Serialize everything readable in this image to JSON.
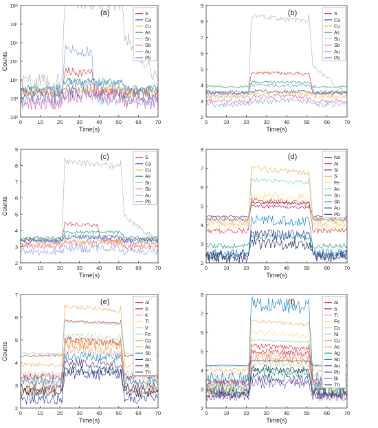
{
  "chart_data": [
    {
      "type": "line",
      "label": "(a)",
      "xlabel": "Time(s)",
      "ylabel": "Counts",
      "xlim": [
        0,
        70
      ],
      "xticks": [
        "0",
        "10",
        "20",
        "30",
        "40",
        "50",
        "60",
        "70"
      ],
      "yscale": "log",
      "ylim": [
        2,
        8
      ],
      "yticks": [
        {
          "v": 2,
          "label": "10²"
        },
        {
          "v": 3,
          "label": "10³"
        },
        {
          "v": 4,
          "label": "10⁴"
        },
        {
          "v": 5,
          "label": "10⁵"
        },
        {
          "v": 6,
          "label": "10⁶"
        },
        {
          "v": 7,
          "label": "10⁷"
        },
        {
          "v": 8,
          "label": "10⁸"
        }
      ],
      "grid": false,
      "legend_position": "top-right",
      "series": [
        {
          "name": "S",
          "color": "#e8363a",
          "base": 3.35,
          "peak": 4.45,
          "noise": 0.25,
          "start": 21,
          "end": 37
        },
        {
          "name": "Ca",
          "color": "#2563c9",
          "base": 3.05,
          "peak": 3.3,
          "noise": 0.35,
          "start": 21,
          "end": 52
        },
        {
          "name": "Cu",
          "color": "#f2c230",
          "base": 3.25,
          "peak": 3.5,
          "noise": 0.25,
          "start": 21,
          "end": 52
        },
        {
          "name": "As",
          "color": "#1aa372",
          "base": 3.55,
          "peak": 3.9,
          "noise": 0.2,
          "start": 21,
          "end": 52
        },
        {
          "name": "Sn",
          "color": "#b7b7b7",
          "base": 3.9,
          "peak": 8.3,
          "noise": 0.45,
          "start": 21,
          "end": 52,
          "tail": 6.5
        },
        {
          "name": "Sb",
          "color": "#e86aa8",
          "base": 2.8,
          "peak": 3.2,
          "noise": 0.45,
          "start": 21,
          "end": 52
        },
        {
          "name": "Au",
          "color": "#8ea4e0",
          "base": 2.9,
          "peak": 5.7,
          "noise": 0.3,
          "start": 21,
          "end": 37
        },
        {
          "name": "Pb",
          "color": "#6d8ed4",
          "base": 3.4,
          "peak": 3.8,
          "noise": 0.3,
          "start": 21,
          "end": 52
        }
      ]
    },
    {
      "type": "line",
      "label": "(b)",
      "xlabel": "Time(s)",
      "ylabel": "",
      "xlim": [
        0,
        70
      ],
      "xticks": [
        "0",
        "10",
        "20",
        "30",
        "40",
        "50",
        "60",
        "70"
      ],
      "ylim": [
        2,
        9
      ],
      "yticks": [
        {
          "v": 2,
          "label": "2"
        },
        {
          "v": 3,
          "label": "3"
        },
        {
          "v": 4,
          "label": "4"
        },
        {
          "v": 5,
          "label": "5"
        },
        {
          "v": 6,
          "label": "6"
        },
        {
          "v": 7,
          "label": "7"
        },
        {
          "v": 8,
          "label": "8"
        },
        {
          "v": 9,
          "label": "9"
        }
      ],
      "grid": false,
      "legend_position": "top-right",
      "series": [
        {
          "name": "S",
          "color": "#e8363a",
          "base": 3.5,
          "peak": 4.8,
          "noise": 0.1,
          "start": 21,
          "end": 52
        },
        {
          "name": "Ca",
          "color": "#2563c9",
          "base": 3.5,
          "peak": 3.6,
          "noise": 0.12,
          "start": 21,
          "end": 52
        },
        {
          "name": "Cu",
          "color": "#f2c230",
          "base": 3.3,
          "peak": 3.5,
          "noise": 0.15,
          "start": 21,
          "end": 52
        },
        {
          "name": "As",
          "color": "#1aa372",
          "base": 3.9,
          "peak": 4.2,
          "noise": 0.08,
          "start": 21,
          "end": 52
        },
        {
          "name": "Sn",
          "color": "#b7b7b7",
          "base": 3.3,
          "peak": 8.4,
          "noise": 0.15,
          "start": 21,
          "end": 52,
          "tail": 5.2
        },
        {
          "name": "Sb",
          "color": "#e86aa8",
          "base": 3.0,
          "peak": 3.3,
          "noise": 0.15,
          "start": 21,
          "end": 52
        },
        {
          "name": "Au",
          "color": "#8ea4e0",
          "base": 2.8,
          "peak": 3.0,
          "noise": 0.2,
          "start": 21,
          "end": 52
        },
        {
          "name": "Pb",
          "color": "#6d8ed4",
          "base": 3.6,
          "peak": 4.0,
          "noise": 0.1,
          "start": 21,
          "end": 52
        }
      ]
    },
    {
      "type": "line",
      "label": "(c)",
      "xlabel": "Time(s)",
      "ylabel": "Counts",
      "xlim": [
        0,
        70
      ],
      "xticks": [
        "0",
        "10",
        "20",
        "30",
        "40",
        "50",
        "60",
        "70"
      ],
      "ylim": [
        2,
        9
      ],
      "yticks": [
        {
          "v": 2,
          "label": "2"
        },
        {
          "v": 3,
          "label": "3"
        },
        {
          "v": 4,
          "label": "4"
        },
        {
          "v": 5,
          "label": "5"
        },
        {
          "v": 6,
          "label": "6"
        },
        {
          "v": 7,
          "label": "7"
        },
        {
          "v": 8,
          "label": "8"
        },
        {
          "v": 9,
          "label": "9"
        }
      ],
      "grid": false,
      "legend_position": "top-right",
      "series": [
        {
          "name": "S",
          "color": "#e8363a",
          "base": 3.4,
          "peak": 4.4,
          "noise": 0.12,
          "start": 21,
          "end": 40
        },
        {
          "name": "Ca",
          "color": "#2563c9",
          "base": 3.4,
          "peak": 3.6,
          "noise": 0.15,
          "start": 21,
          "end": 52
        },
        {
          "name": "Cu",
          "color": "#f2c230",
          "base": 3.1,
          "peak": 3.3,
          "noise": 0.15,
          "start": 21,
          "end": 52
        },
        {
          "name": "As",
          "color": "#1aa372",
          "base": 3.55,
          "peak": 3.9,
          "noise": 0.1,
          "start": 21,
          "end": 52
        },
        {
          "name": "Sn",
          "color": "#b7b7b7",
          "base": 3.3,
          "peak": 8.3,
          "noise": 0.2,
          "start": 21,
          "end": 52,
          "tail": 4.8
        },
        {
          "name": "Sb",
          "color": "#e86aa8",
          "base": 3.0,
          "peak": 3.2,
          "noise": 0.2,
          "start": 21,
          "end": 52
        },
        {
          "name": "Au",
          "color": "#8ea4e0",
          "base": 2.7,
          "peak": 2.9,
          "noise": 0.25,
          "start": 21,
          "end": 52
        },
        {
          "name": "Pb",
          "color": "#6d8ed4",
          "base": 3.3,
          "peak": 3.6,
          "noise": 0.15,
          "start": 21,
          "end": 52
        }
      ]
    },
    {
      "type": "line",
      "label": "(d)",
      "xlabel": "Time(s)",
      "ylabel": "",
      "xlim": [
        0,
        70
      ],
      "xticks": [
        "0",
        "10",
        "20",
        "30",
        "40",
        "50",
        "60",
        "70"
      ],
      "ylim": [
        2,
        8
      ],
      "yticks": [
        {
          "v": 2,
          "label": "2"
        },
        {
          "v": 3,
          "label": "3"
        },
        {
          "v": 4,
          "label": "4"
        },
        {
          "v": 5,
          "label": "5"
        },
        {
          "v": 6,
          "label": "6"
        },
        {
          "v": 7,
          "label": "7"
        },
        {
          "v": 8,
          "label": "8"
        }
      ],
      "grid": false,
      "legend_position": "top-right",
      "series": [
        {
          "name": "Na",
          "color": "#7a1a2e",
          "base": 4.45,
          "peak": 5.2,
          "noise": 0.05,
          "start": 21,
          "end": 52
        },
        {
          "name": "Al",
          "color": "#e8363a",
          "base": 3.7,
          "peak": 5.3,
          "noise": 0.15,
          "start": 21,
          "end": 52
        },
        {
          "name": "Si",
          "color": "#c2185b",
          "base": 4.3,
          "peak": 5.0,
          "noise": 0.1,
          "start": 21,
          "end": 52
        },
        {
          "name": "S",
          "color": "#f2b56a",
          "base": 4.1,
          "peak": 7.0,
          "noise": 0.15,
          "start": 21,
          "end": 52
        },
        {
          "name": "Fe",
          "color": "#f7e08a",
          "base": 4.0,
          "peak": 5.6,
          "noise": 0.2,
          "start": 21,
          "end": 52
        },
        {
          "name": "As",
          "color": "#7fd6c4",
          "base": 4.3,
          "peak": 6.4,
          "noise": 0.1,
          "start": 21,
          "end": 52
        },
        {
          "name": "Sn",
          "color": "#1aa372",
          "base": 2.9,
          "peak": 3.4,
          "noise": 0.15,
          "start": 21,
          "end": 52
        },
        {
          "name": "Sb",
          "color": "#1e88c9",
          "base": 2.5,
          "peak": 4.3,
          "noise": 0.25,
          "start": 21,
          "end": 52
        },
        {
          "name": "Au",
          "color": "#2a3fa0",
          "base": 2.4,
          "peak": 3.5,
          "noise": 0.3,
          "start": 21,
          "end": 52
        },
        {
          "name": "Pb",
          "color": "#1e2a5a",
          "base": 2.3,
          "peak": 3.0,
          "noise": 0.3,
          "start": 21,
          "end": 52
        }
      ]
    },
    {
      "type": "line",
      "label": "(e)",
      "xlabel": "Time(s)",
      "ylabel": "Counts",
      "xlim": [
        0,
        70
      ],
      "xticks": [
        "0",
        "10",
        "20",
        "30",
        "40",
        "50",
        "60",
        "70"
      ],
      "ylim": [
        2,
        7
      ],
      "yticks": [
        {
          "v": 2,
          "label": "2"
        },
        {
          "v": 3,
          "label": "3"
        },
        {
          "v": 4,
          "label": "4"
        },
        {
          "v": 5,
          "label": "5"
        },
        {
          "v": 6,
          "label": "6"
        },
        {
          "v": 7,
          "label": "7"
        }
      ],
      "grid": false,
      "legend_position": "top-right",
      "series": [
        {
          "name": "Al",
          "color": "#e8363a",
          "base": 4.3,
          "peak": 5.85,
          "noise": 0.05,
          "start": 21,
          "end": 52
        },
        {
          "name": "S",
          "color": "#c2185b",
          "base": 3.4,
          "peak": 5.0,
          "noise": 0.15,
          "start": 21,
          "end": 52
        },
        {
          "name": "K",
          "color": "#f2b56a",
          "base": 3.9,
          "peak": 6.5,
          "noise": 0.1,
          "start": 21,
          "end": 52
        },
        {
          "name": "Ti",
          "color": "#f7e08a",
          "base": 3.0,
          "peak": 4.8,
          "noise": 0.25,
          "start": 21,
          "end": 52
        },
        {
          "name": "V",
          "color": "#b5d7a0",
          "base": 3.5,
          "peak": 5.2,
          "noise": 0.15,
          "start": 21,
          "end": 52
        },
        {
          "name": "Fe",
          "color": "#7fd6c4",
          "base": 4.4,
          "peak": 5.8,
          "noise": 0.05,
          "start": 21,
          "end": 52
        },
        {
          "name": "Co",
          "color": "#f08a3a",
          "base": 2.8,
          "peak": 4.9,
          "noise": 0.25,
          "start": 21,
          "end": 52
        },
        {
          "name": "As",
          "color": "#f7a8a0",
          "base": 3.3,
          "peak": 4.6,
          "noise": 0.2,
          "start": 21,
          "end": 52
        },
        {
          "name": "Sb",
          "color": "#1e88c9",
          "base": 3.2,
          "peak": 4.3,
          "noise": 0.2,
          "start": 21,
          "end": 52
        },
        {
          "name": "Au",
          "color": "#2a3fa0",
          "base": 2.4,
          "peak": 3.5,
          "noise": 0.25,
          "start": 21,
          "end": 52
        },
        {
          "name": "Bi",
          "color": "#5a3f8e",
          "base": 2.9,
          "peak": 4.0,
          "noise": 0.2,
          "start": 21,
          "end": 52
        },
        {
          "name": "Th",
          "color": "#1e2a5a",
          "base": 2.7,
          "peak": 3.7,
          "noise": 0.2,
          "start": 21,
          "end": 52
        }
      ]
    },
    {
      "type": "line",
      "label": "(f)",
      "xlabel": "Time(s)",
      "ylabel": "",
      "xlim": [
        0,
        70
      ],
      "xticks": [
        "0",
        "10",
        "20",
        "30",
        "40",
        "50",
        "60",
        "70"
      ],
      "ylim": [
        2,
        8
      ],
      "yticks": [
        {
          "v": 2,
          "label": "2"
        },
        {
          "v": 3,
          "label": "3"
        },
        {
          "v": 4,
          "label": "4"
        },
        {
          "v": 5,
          "label": "5"
        },
        {
          "v": 6,
          "label": "6"
        },
        {
          "v": 7,
          "label": "7"
        },
        {
          "v": 8,
          "label": "8"
        }
      ],
      "grid": false,
      "legend_position": "top-right",
      "series": [
        {
          "name": "Al",
          "color": "#e8363a",
          "base": 3.4,
          "peak": 5.3,
          "noise": 0.15,
          "start": 21,
          "end": 52
        },
        {
          "name": "S",
          "color": "#c2185b",
          "base": 3.3,
          "peak": 5.0,
          "noise": 0.15,
          "start": 21,
          "end": 52
        },
        {
          "name": "Ti",
          "color": "#f2b56a",
          "base": 4.0,
          "peak": 6.6,
          "noise": 0.1,
          "start": 21,
          "end": 52
        },
        {
          "name": "Fe",
          "color": "#f7e08a",
          "base": 3.8,
          "peak": 6.0,
          "noise": 0.15,
          "start": 21,
          "end": 52
        },
        {
          "name": "Co",
          "color": "#b5d7a0",
          "base": 3.1,
          "peak": 4.4,
          "noise": 0.2,
          "start": 21,
          "end": 52
        },
        {
          "name": "Ni",
          "color": "#7fd6c4",
          "base": 4.2,
          "peak": 5.6,
          "noise": 0.05,
          "start": 21,
          "end": 52
        },
        {
          "name": "Cu",
          "color": "#f08a3a",
          "base": 2.9,
          "peak": 4.7,
          "noise": 0.25,
          "start": 21,
          "end": 52
        },
        {
          "name": "As",
          "color": "#f7a8a0",
          "base": 3.2,
          "peak": 4.9,
          "noise": 0.2,
          "start": 21,
          "end": 52
        },
        {
          "name": "Ag",
          "color": "#1aa372",
          "base": 3.0,
          "peak": 3.9,
          "noise": 0.25,
          "start": 21,
          "end": 52
        },
        {
          "name": "Sb",
          "color": "#1e88c9",
          "base": 3.5,
          "peak": 7.6,
          "noise": 0.4,
          "start": 21,
          "end": 52
        },
        {
          "name": "Au",
          "color": "#2a3fa0",
          "base": 2.8,
          "peak": 3.6,
          "noise": 0.3,
          "start": 21,
          "end": 52
        },
        {
          "name": "Pb",
          "color": "#3a2a7a",
          "base": 4.25,
          "peak": 4.5,
          "noise": 0.03,
          "start": 21,
          "end": 52
        },
        {
          "name": "Bi",
          "color": "#8e5ab0",
          "base": 2.6,
          "peak": 3.3,
          "noise": 0.25,
          "start": 21,
          "end": 52
        },
        {
          "name": "Th",
          "color": "#1e2a5a",
          "base": 2.7,
          "peak": 4.1,
          "noise": 0.2,
          "start": 21,
          "end": 52
        }
      ]
    }
  ]
}
